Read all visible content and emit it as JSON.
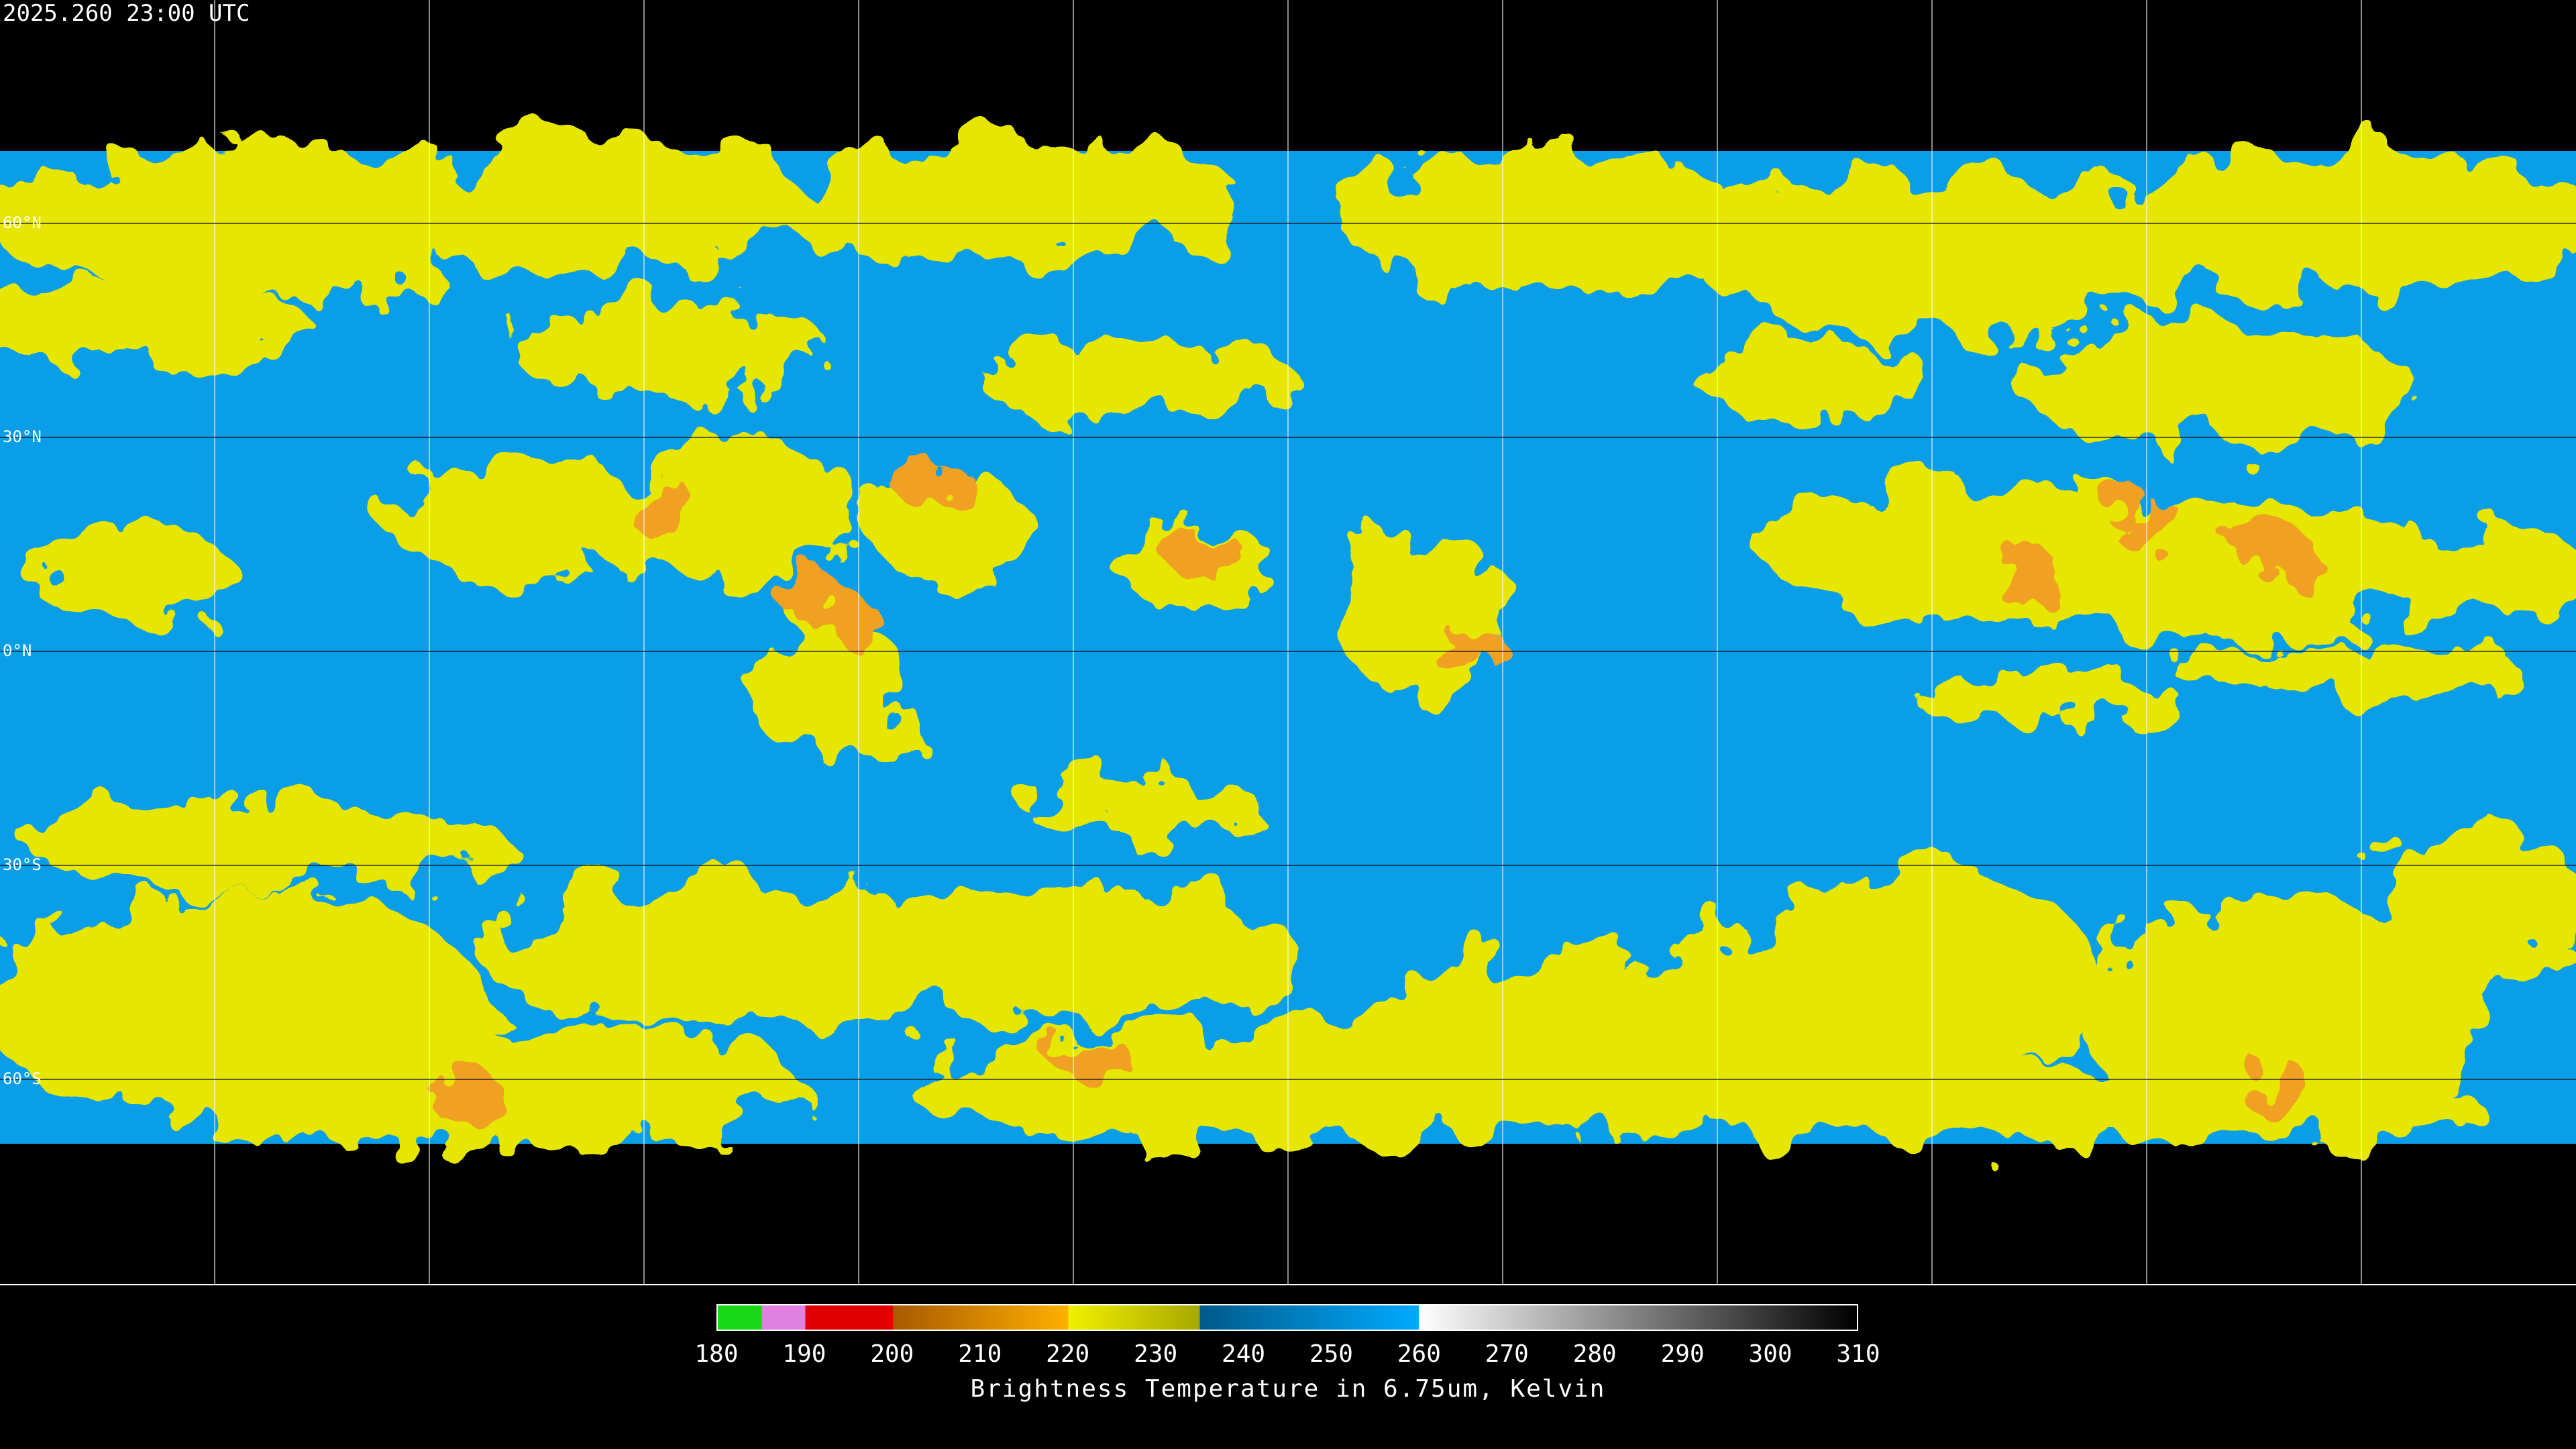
{
  "header": {
    "timestamp": "2025.260 23:00 UTC"
  },
  "map": {
    "lat_labels": [
      "60°N",
      "30°N",
      "0°N",
      "30°S",
      "60°S"
    ]
  },
  "colorbar": {
    "ticks": [
      180,
      190,
      200,
      210,
      220,
      230,
      240,
      250,
      260,
      270,
      280,
      290,
      300,
      310
    ],
    "label": "Brightness Temperature in 6.75um, Kelvin"
  }
}
